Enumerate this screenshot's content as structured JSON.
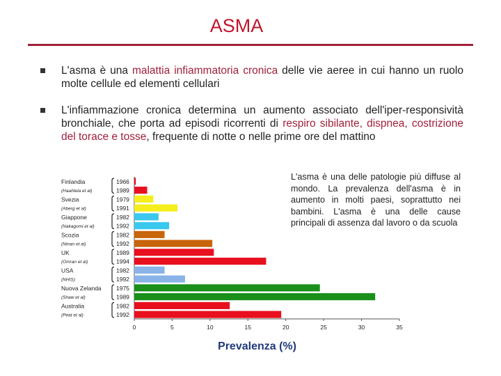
{
  "slide": {
    "title": "ASMA",
    "bullet1": {
      "pre": "L'asma è una ",
      "highlight": "malattia infiammatoria cronica",
      "post": " delle vie aeree in cui hanno un ruolo molte cellule ed elementi cellulari"
    },
    "bullet2": {
      "pre": "L'infiammazione cronica determina un aumento associato dell'iper-responsività bronchiale, che porta ad episodi ricorrenti di ",
      "highlight": "respiro sibilante, dispnea, costrizione del torace e tosse",
      "post": ", frequente di notte o nelle prime ore del mattino"
    },
    "side_text": "L'asma è una delle patologie più diffuse al mondo. La prevalenza dell'asma è in aumento in molti paesi, soprattutto nei bambini. L'asma è una delle cause principali di assenza dal lavoro o da scuola"
  },
  "chart_data": {
    "type": "bar",
    "orientation": "horizontal",
    "xlabel": "Prevalenza (%)",
    "xlim": [
      0,
      35
    ],
    "xticks": [
      0,
      5,
      10,
      15,
      20,
      25,
      30,
      35
    ],
    "groups": [
      {
        "country": "Finlandia",
        "source": "(Haahtela et al)",
        "color": "#e8101e",
        "bars": [
          {
            "year": "1966",
            "value": 0.2
          },
          {
            "year": "1989",
            "value": 1.7
          }
        ]
      },
      {
        "country": "Svezia",
        "source": "(Aberg et al)",
        "color": "#f5ee1c",
        "bars": [
          {
            "year": "1979",
            "value": 2.5
          },
          {
            "year": "1991",
            "value": 5.7
          }
        ]
      },
      {
        "country": "Giappone",
        "source": "(Nakagomi et al)",
        "color": "#3ac8ef",
        "bars": [
          {
            "year": "1982",
            "value": 3.2
          },
          {
            "year": "1992",
            "value": 4.6
          }
        ]
      },
      {
        "country": "Scozia",
        "source": "(Ninan et al)",
        "color": "#c8640a",
        "bars": [
          {
            "year": "1982",
            "value": 4.0
          },
          {
            "year": "1992",
            "value": 10.3
          }
        ]
      },
      {
        "country": "UK",
        "source": "(Omran et al)",
        "color": "#e8101e",
        "bars": [
          {
            "year": "1989",
            "value": 10.5
          },
          {
            "year": "1994",
            "value": 17.4
          }
        ]
      },
      {
        "country": "USA",
        "source": "(NHIS)",
        "color": "#8ab4e8",
        "bars": [
          {
            "year": "1982",
            "value": 4.0
          },
          {
            "year": "1992",
            "value": 6.7
          }
        ]
      },
      {
        "country": "Nuova Zelanda",
        "source": "(Shaw et al)",
        "color": "#1a8f1a",
        "bars": [
          {
            "year": "1975",
            "value": 24.5
          },
          {
            "year": "1989",
            "value": 31.8
          }
        ]
      },
      {
        "country": "Australia",
        "source": "(Peat et al)",
        "color": "#e8101e",
        "bars": [
          {
            "year": "1982",
            "value": 12.6
          },
          {
            "year": "1992",
            "value": 19.4
          }
        ]
      }
    ]
  }
}
